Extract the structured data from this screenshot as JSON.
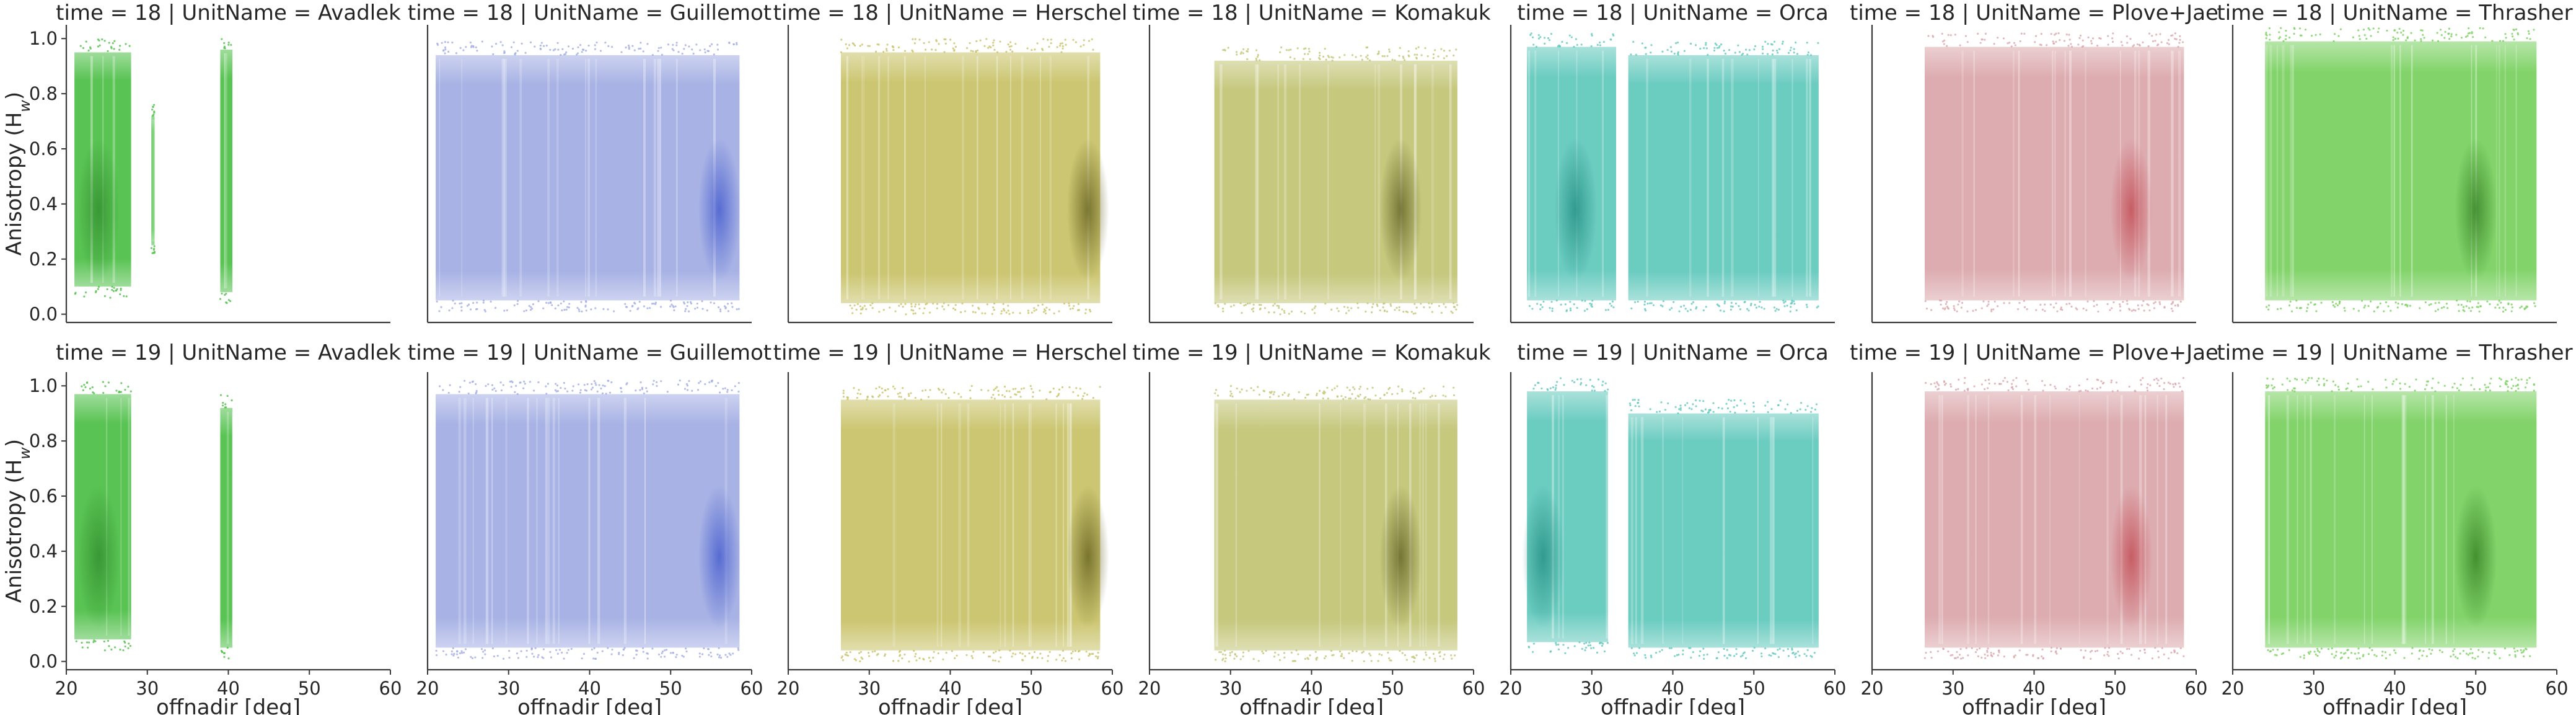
{
  "chart_data": {
    "type": "scatter",
    "layout": "facet-grid",
    "row_labels": [
      "time = 18",
      "time = 19"
    ],
    "col_labels": [
      "UnitName = Avadlek",
      "UnitName = Guillemot",
      "UnitName = Herschel",
      "UnitName = Komakuk",
      "UnitName = Orca",
      "UnitName = Plove+Jae",
      "UnitName = Thrasher"
    ],
    "facet_separator": " | ",
    "xlabel": "offnadir [deg]",
    "ylabel": "Anisotropy (H",
    "ylabel_subscript": "w",
    "ylabel_suffix": ")",
    "xlim": [
      20,
      60
    ],
    "ylim": [
      -0.03,
      1.05
    ],
    "xticks": [
      20,
      30,
      40,
      50,
      60
    ],
    "yticks": [
      0.0,
      0.2,
      0.4,
      0.6,
      0.8,
      1.0
    ],
    "grid": false,
    "panels": [
      {
        "row": 0,
        "col": 0,
        "unit": "Avadlek",
        "color": "#50c04a",
        "dark": "#2f8a2b",
        "strips": [
          [
            21,
            28,
            0.1,
            0.95
          ],
          [
            30.5,
            30.9,
            0.25,
            0.72
          ],
          [
            39,
            40.5,
            0.08,
            0.96
          ]
        ],
        "dense_at": [
          24
        ]
      },
      {
        "row": 0,
        "col": 1,
        "unit": "Guillemot",
        "color": "#a3aee3",
        "dark": "#3d55cc",
        "strips": [
          [
            21,
            58.5,
            0.05,
            0.94
          ]
        ],
        "dense_at": [
          56
        ]
      },
      {
        "row": 0,
        "col": 2,
        "unit": "Herschel",
        "color": "#c9c36a",
        "dark": "#5f5a18",
        "strips": [
          [
            26.5,
            58.5,
            0.04,
            0.95
          ]
        ],
        "dense_at": [
          57
        ]
      },
      {
        "row": 0,
        "col": 3,
        "unit": "Komakuk",
        "color": "#c3c577",
        "dark": "#5a5b1c",
        "strips": [
          [
            28,
            58,
            0.04,
            0.92
          ]
        ],
        "dense_at": [
          51
        ]
      },
      {
        "row": 0,
        "col": 4,
        "unit": "Orca",
        "color": "#63c9bd",
        "dark": "#1f8a7f",
        "strips": [
          [
            22,
            33,
            0.05,
            0.97
          ],
          [
            34.5,
            58,
            0.05,
            0.94
          ]
        ],
        "dense_at": [
          28
        ]
      },
      {
        "row": 0,
        "col": 5,
        "unit": "Plove+Jae",
        "color": "#dba8ac",
        "dark": "#c0434c",
        "strips": [
          [
            26.5,
            58.5,
            0.05,
            0.97
          ]
        ],
        "dense_at": [
          52
        ]
      },
      {
        "row": 0,
        "col": 6,
        "unit": "Thrasher",
        "color": "#7bd162",
        "dark": "#2f7a1e",
        "strips": [
          [
            24,
            57.5,
            0.05,
            0.99
          ]
        ],
        "dense_at": [
          50
        ]
      },
      {
        "row": 1,
        "col": 0,
        "unit": "Avadlek",
        "color": "#50c04a",
        "dark": "#2f8a2b",
        "strips": [
          [
            21,
            28,
            0.08,
            0.97
          ],
          [
            39,
            40.5,
            0.05,
            0.92
          ]
        ],
        "dense_at": [
          24
        ]
      },
      {
        "row": 1,
        "col": 1,
        "unit": "Guillemot",
        "color": "#a3aee3",
        "dark": "#3d55cc",
        "strips": [
          [
            21,
            58.5,
            0.05,
            0.97
          ]
        ],
        "dense_at": [
          56
        ]
      },
      {
        "row": 1,
        "col": 2,
        "unit": "Herschel",
        "color": "#c9c36a",
        "dark": "#5f5a18",
        "strips": [
          [
            26.5,
            58.5,
            0.04,
            0.95
          ]
        ],
        "dense_at": [
          57
        ]
      },
      {
        "row": 1,
        "col": 3,
        "unit": "Komakuk",
        "color": "#c3c577",
        "dark": "#5a5b1c",
        "strips": [
          [
            28,
            58,
            0.04,
            0.95
          ]
        ],
        "dense_at": [
          51
        ]
      },
      {
        "row": 1,
        "col": 4,
        "unit": "Orca",
        "color": "#63c9bd",
        "dark": "#1f8a7f",
        "strips": [
          [
            22,
            32,
            0.07,
            0.98
          ],
          [
            34.5,
            58,
            0.05,
            0.9
          ]
        ],
        "dense_at": [
          24
        ]
      },
      {
        "row": 1,
        "col": 5,
        "unit": "Plove+Jae",
        "color": "#dba8ac",
        "dark": "#c0434c",
        "strips": [
          [
            26.5,
            58.5,
            0.05,
            0.98
          ]
        ],
        "dense_at": [
          52
        ]
      },
      {
        "row": 1,
        "col": 6,
        "unit": "Thrasher",
        "color": "#7bd162",
        "dark": "#2f7a1e",
        "strips": [
          [
            24,
            57.5,
            0.05,
            0.98
          ]
        ],
        "dense_at": [
          50
        ]
      }
    ]
  }
}
